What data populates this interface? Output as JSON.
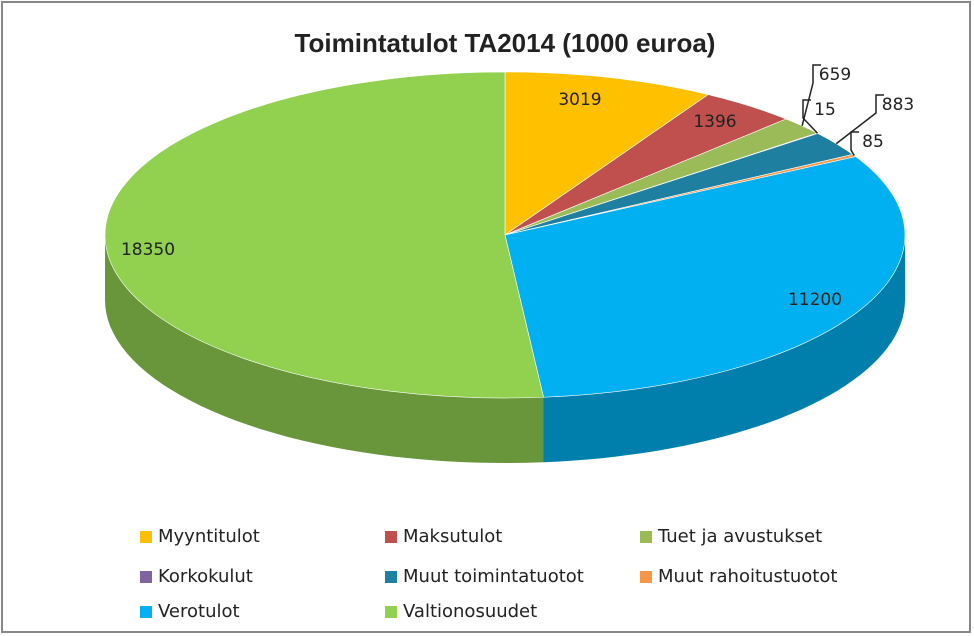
{
  "chart_data": {
    "type": "pie",
    "title": "Toimintatulot TA2014 (1000 euroa)",
    "categories": [
      "Myyntitulot",
      "Maksutulot",
      "Tuet ja avustukset",
      "Korkokulut",
      "Muut toimintatuotot",
      "Muut rahoitustuotot",
      "Verotulot",
      "Valtionosuudet"
    ],
    "values": [
      3019,
      1396,
      659,
      15,
      883,
      85,
      11200,
      18350
    ],
    "colors": [
      "#ffc000",
      "#c0504d",
      "#9bbb59",
      "#8064a2",
      "#1f7fa0",
      "#f79646",
      "#00b0f0",
      "#92d050"
    ],
    "legend": "bottom"
  }
}
